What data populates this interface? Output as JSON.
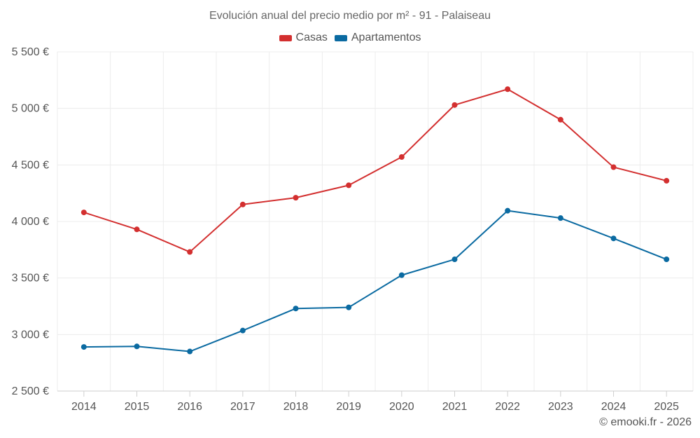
{
  "chart_data": {
    "type": "line",
    "title": "Evolución anual del precio medio por m² - 91 - Palaiseau",
    "categories": [
      "2014",
      "2015",
      "2016",
      "2017",
      "2018",
      "2019",
      "2020",
      "2021",
      "2022",
      "2023",
      "2024",
      "2025"
    ],
    "series": [
      {
        "name": "Casas",
        "color": "#d32f2f",
        "values": [
          4080,
          3930,
          3730,
          4150,
          4210,
          4320,
          4570,
          5030,
          5170,
          4900,
          4480,
          4360
        ]
      },
      {
        "name": "Apartamentos",
        "color": "#0a6aa1",
        "values": [
          2890,
          2895,
          2850,
          3035,
          3230,
          3240,
          3525,
          3665,
          4095,
          4030,
          3850,
          3665
        ]
      }
    ],
    "ylim": [
      2500,
      5500
    ],
    "yticks": [
      2500,
      3000,
      3500,
      4000,
      4500,
      5000,
      5500
    ],
    "ytick_labels": [
      "2 500 €",
      "3 000 €",
      "3 500 €",
      "4 000 €",
      "4 500 €",
      "5 000 €",
      "5 500 €"
    ],
    "xlabel": "",
    "ylabel": "",
    "grid": true,
    "legend_position": "top-center"
  },
  "footer": {
    "copyright": "© emooki.fr - 2026"
  }
}
